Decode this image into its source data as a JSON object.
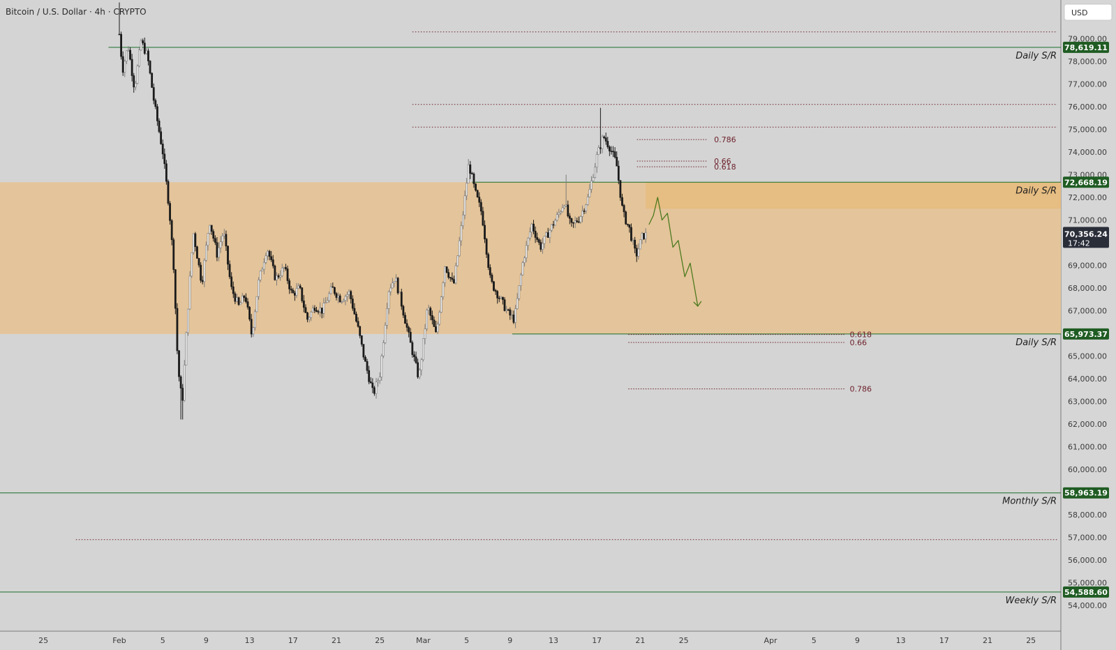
{
  "header": {
    "title": "Bitcoin / U.S. Dollar · 4h · CRYPTO",
    "currency_button": "USD"
  },
  "colors": {
    "background": "#d4d4d4",
    "zone_fill": "#e4c49a",
    "zone_top_fill": "#e6bd82",
    "sr_line": "#1b6e2a",
    "fib_line": "#6b1f2a",
    "candle_up": "#9a9a9a",
    "candle_down": "#1a1a1a",
    "forecast": "#4c7a1f",
    "label_green": "#1f5c23",
    "current_price_bg": "#2a2e39"
  },
  "chart_data": {
    "type": "candlestick",
    "symbol": "Bitcoin / U.S. Dollar",
    "interval": "4h",
    "ylim": [
      53500,
      80500
    ],
    "y_ticks": [
      "54,000.00",
      "55,000.00",
      "56,000.00",
      "57,000.00",
      "58,000.00",
      "60,000.00",
      "61,000.00",
      "62,000.00",
      "63,000.00",
      "64,000.00",
      "65,000.00",
      "67,000.00",
      "68,000.00",
      "69,000.00",
      "71,000.00",
      "72,000.00",
      "73,000.00",
      "74,000.00",
      "75,000.00",
      "76,000.00",
      "77,000.00",
      "78,000.00",
      "79,000.00"
    ],
    "x_ticks": [
      "25",
      "Feb",
      "5",
      "9",
      "13",
      "17",
      "21",
      "25",
      "Mar",
      "5",
      "9",
      "13",
      "17",
      "21",
      "25",
      "Apr",
      "5",
      "9",
      "13",
      "17",
      "21",
      "25"
    ],
    "x_tick_days": [
      -7,
      0,
      4,
      8,
      12,
      16,
      20,
      24,
      28,
      32,
      36,
      40,
      44,
      48,
      52,
      60,
      64,
      68,
      72,
      76,
      80,
      84
    ],
    "price_path": [
      {
        "day": 0.0,
        "price": 79200
      },
      {
        "day": 0.3,
        "price": 77600
      },
      {
        "day": 0.8,
        "price": 78700
      },
      {
        "day": 1.4,
        "price": 76800
      },
      {
        "day": 2.0,
        "price": 78900
      },
      {
        "day": 2.6,
        "price": 78200
      },
      {
        "day": 3.2,
        "price": 76200
      },
      {
        "day": 4.0,
        "price": 74000
      },
      {
        "day": 4.6,
        "price": 71500
      },
      {
        "day": 5.0,
        "price": 69000
      },
      {
        "day": 5.4,
        "price": 64500
      },
      {
        "day": 5.8,
        "price": 62900
      },
      {
        "day": 6.3,
        "price": 67000
      },
      {
        "day": 6.8,
        "price": 70500
      },
      {
        "day": 7.6,
        "price": 68200
      },
      {
        "day": 8.3,
        "price": 71000
      },
      {
        "day": 9.0,
        "price": 69500
      },
      {
        "day": 9.6,
        "price": 70500
      },
      {
        "day": 10.3,
        "price": 68000
      },
      {
        "day": 11.0,
        "price": 67200
      },
      {
        "day": 11.6,
        "price": 67700
      },
      {
        "day": 12.2,
        "price": 65900
      },
      {
        "day": 12.8,
        "price": 68200
      },
      {
        "day": 13.6,
        "price": 69800
      },
      {
        "day": 14.4,
        "price": 68400
      },
      {
        "day": 15.2,
        "price": 68900
      },
      {
        "day": 15.9,
        "price": 67700
      },
      {
        "day": 16.6,
        "price": 68000
      },
      {
        "day": 17.3,
        "price": 66600
      },
      {
        "day": 18.0,
        "price": 67200
      },
      {
        "day": 18.7,
        "price": 67000
      },
      {
        "day": 19.6,
        "price": 68000
      },
      {
        "day": 20.4,
        "price": 67500
      },
      {
        "day": 21.2,
        "price": 67800
      },
      {
        "day": 22.0,
        "price": 66200
      },
      {
        "day": 22.6,
        "price": 64800
      },
      {
        "day": 23.4,
        "price": 63300
      },
      {
        "day": 24.0,
        "price": 64200
      },
      {
        "day": 24.8,
        "price": 67900
      },
      {
        "day": 25.4,
        "price": 68500
      },
      {
        "day": 26.0,
        "price": 67300
      },
      {
        "day": 26.8,
        "price": 65600
      },
      {
        "day": 27.6,
        "price": 64000
      },
      {
        "day": 28.4,
        "price": 67200
      },
      {
        "day": 29.2,
        "price": 65900
      },
      {
        "day": 30.0,
        "price": 69000
      },
      {
        "day": 30.8,
        "price": 68100
      },
      {
        "day": 31.6,
        "price": 71000
      },
      {
        "day": 32.2,
        "price": 73500
      },
      {
        "day": 32.8,
        "price": 72200
      },
      {
        "day": 33.4,
        "price": 71300
      },
      {
        "day": 34.2,
        "price": 68300
      },
      {
        "day": 35.0,
        "price": 67600
      },
      {
        "day": 35.8,
        "price": 66900
      },
      {
        "day": 36.4,
        "price": 66600
      },
      {
        "day": 37.2,
        "price": 69200
      },
      {
        "day": 38.0,
        "price": 70800
      },
      {
        "day": 38.8,
        "price": 69800
      },
      {
        "day": 39.6,
        "price": 70500
      },
      {
        "day": 40.4,
        "price": 71200
      },
      {
        "day": 41.0,
        "price": 71800
      },
      {
        "day": 41.6,
        "price": 70700
      },
      {
        "day": 42.4,
        "price": 71100
      },
      {
        "day": 43.2,
        "price": 72000
      },
      {
        "day": 44.0,
        "price": 73800
      },
      {
        "day": 44.6,
        "price": 74700
      },
      {
        "day": 45.2,
        "price": 74200
      },
      {
        "day": 45.8,
        "price": 73500
      },
      {
        "day": 46.4,
        "price": 71300
      },
      {
        "day": 47.0,
        "price": 70600
      },
      {
        "day": 47.6,
        "price": 69400
      },
      {
        "day": 48.2,
        "price": 70300
      },
      {
        "day": 48.6,
        "price": 70356
      }
    ],
    "current_price": "70,356.24",
    "countdown": "17:42",
    "zone": {
      "from": 65973.37,
      "to": 72668.19,
      "upper_band_from": 71500
    },
    "sr_levels": [
      {
        "price": 78619.11,
        "label": "78,619.11",
        "name": "Daily S/R"
      },
      {
        "price": 72668.19,
        "label": "72,668.19",
        "name": "Daily S/R"
      },
      {
        "price": 65973.37,
        "label": "65,973.37",
        "name": "Daily S/R"
      },
      {
        "price": 58963.19,
        "label": "58,963.19",
        "name": "Monthly S/R"
      },
      {
        "price": 54588.6,
        "label": "54,588.60",
        "name": "Weekly S/R"
      }
    ],
    "dotted_levels": [
      79300,
      76100,
      75100,
      56900
    ],
    "fib_upper": [
      {
        "price": 74550,
        "label": "0.786"
      },
      {
        "price": 73600,
        "label": "0.66"
      },
      {
        "price": 73350,
        "label": "0.618"
      }
    ],
    "fib_lower": [
      {
        "price": 65950,
        "label": "0.618"
      },
      {
        "price": 65600,
        "label": "0.66"
      },
      {
        "price": 63550,
        "label": "0.786"
      }
    ],
    "forecast_path": [
      {
        "day": 48.8,
        "price": 70800
      },
      {
        "day": 49.2,
        "price": 71200
      },
      {
        "day": 49.6,
        "price": 72000
      },
      {
        "day": 50.0,
        "price": 71000
      },
      {
        "day": 50.5,
        "price": 71300
      },
      {
        "day": 51.0,
        "price": 69800
      },
      {
        "day": 51.5,
        "price": 70100
      },
      {
        "day": 52.1,
        "price": 68500
      },
      {
        "day": 52.6,
        "price": 69100
      },
      {
        "day": 53.3,
        "price": 67200
      }
    ]
  }
}
